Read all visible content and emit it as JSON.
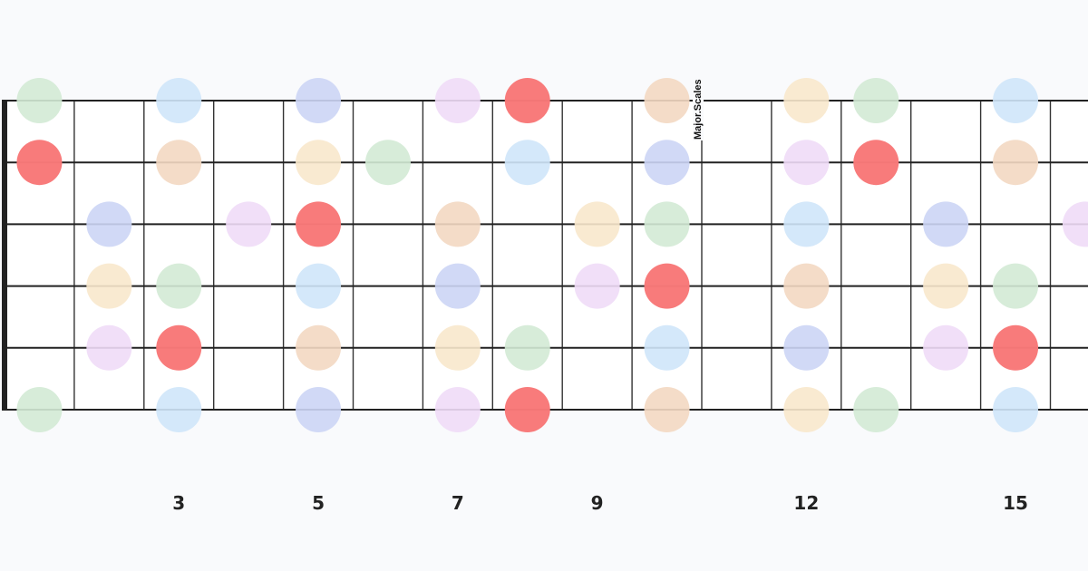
{
  "title": "Major.Scales",
  "frets_shown": 16,
  "strings": 6,
  "fret_markers": [
    {
      "fret": 3,
      "label": "3"
    },
    {
      "fret": 5,
      "label": "5"
    },
    {
      "fret": 7,
      "label": "7"
    },
    {
      "fret": 9,
      "label": "9"
    },
    {
      "fret": 12,
      "label": "12"
    },
    {
      "fret": 15,
      "label": "15"
    }
  ],
  "colors": {
    "root": "#f87878",
    "second": "#f3d8c2",
    "third": "#f8e8cc",
    "fourth": "#d3ead5",
    "fifth": "#cfe5fa",
    "sixth": "#ccd5f5",
    "seventh": "#f0dcf7"
  },
  "dots": [
    [
      [
        1,
        "fourth"
      ],
      [
        3,
        "fifth"
      ],
      [
        5,
        "sixth"
      ],
      [
        7,
        "seventh"
      ],
      [
        8,
        "root"
      ],
      [
        10,
        "second"
      ],
      [
        12,
        "third"
      ],
      [
        13,
        "fourth"
      ],
      [
        15,
        "fifth"
      ]
    ],
    [
      [
        1,
        "root"
      ],
      [
        3,
        "second"
      ],
      [
        5,
        "third"
      ],
      [
        6,
        "fourth"
      ],
      [
        8,
        "fifth"
      ],
      [
        10,
        "sixth"
      ],
      [
        12,
        "seventh"
      ],
      [
        13,
        "root"
      ],
      [
        15,
        "second"
      ]
    ],
    [
      [
        2,
        "sixth"
      ],
      [
        4,
        "seventh"
      ],
      [
        5,
        "root"
      ],
      [
        7,
        "second"
      ],
      [
        9,
        "third"
      ],
      [
        10,
        "fourth"
      ],
      [
        12,
        "fifth"
      ],
      [
        14,
        "sixth"
      ],
      [
        16,
        "seventh"
      ]
    ],
    [
      [
        2,
        "third"
      ],
      [
        3,
        "fourth"
      ],
      [
        5,
        "fifth"
      ],
      [
        7,
        "sixth"
      ],
      [
        9,
        "seventh"
      ],
      [
        10,
        "root"
      ],
      [
        12,
        "second"
      ],
      [
        14,
        "third"
      ],
      [
        15,
        "fourth"
      ]
    ],
    [
      [
        2,
        "seventh"
      ],
      [
        3,
        "root"
      ],
      [
        5,
        "second"
      ],
      [
        7,
        "third"
      ],
      [
        8,
        "fourth"
      ],
      [
        10,
        "fifth"
      ],
      [
        12,
        "sixth"
      ],
      [
        14,
        "seventh"
      ],
      [
        15,
        "root"
      ]
    ],
    [
      [
        1,
        "fourth"
      ],
      [
        3,
        "fifth"
      ],
      [
        5,
        "sixth"
      ],
      [
        7,
        "seventh"
      ],
      [
        8,
        "root"
      ],
      [
        10,
        "second"
      ],
      [
        12,
        "third"
      ],
      [
        13,
        "fourth"
      ],
      [
        15,
        "fifth"
      ]
    ]
  ]
}
